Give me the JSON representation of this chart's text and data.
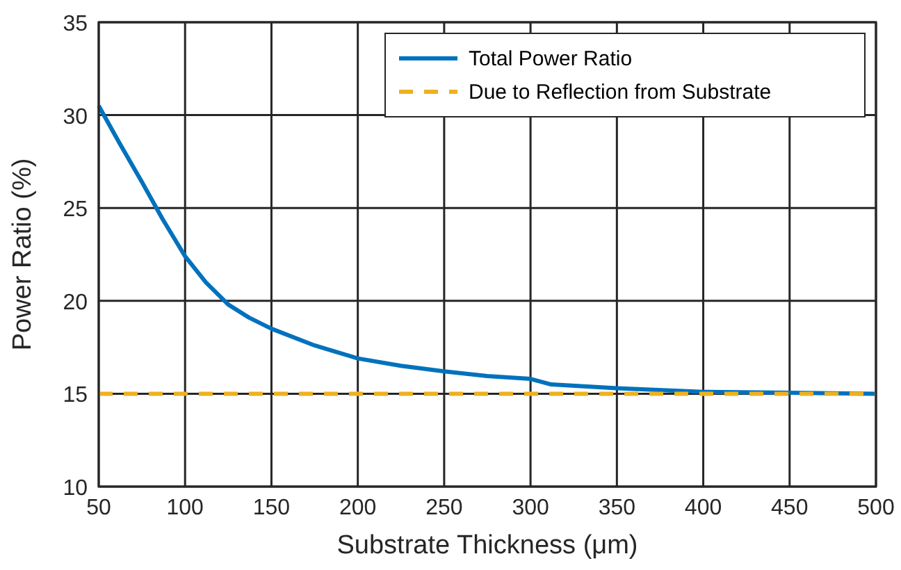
{
  "chart_data": {
    "type": "line",
    "xlabel": "Substrate Thickness (μm)",
    "ylabel": "Power Ratio (%)",
    "xlim": [
      50,
      500
    ],
    "xticks": [
      50,
      100,
      150,
      200,
      250,
      300,
      350,
      400,
      450,
      500
    ],
    "ylim": [
      10,
      35
    ],
    "yticks": [
      10,
      15,
      20,
      25,
      30,
      35
    ],
    "grid": true,
    "legend": "top right",
    "series": [
      {
        "name": "Total Power Ratio",
        "color": "#0072bd",
        "line_style": "solid",
        "x": [
          50,
          62,
          75,
          87,
          100,
          112,
          125,
          137,
          150,
          175,
          200,
          225,
          250,
          275,
          300,
          312,
          350,
          400,
          450,
          500
        ],
        "values": [
          30.5,
          28.5,
          26.4,
          24.4,
          22.4,
          21.0,
          19.8,
          19.1,
          18.5,
          17.6,
          16.9,
          16.5,
          16.2,
          15.95,
          15.8,
          15.5,
          15.3,
          15.1,
          15.05,
          15.0
        ]
      },
      {
        "name": "Due to Reflection from Substrate",
        "color": "#edb120",
        "line_style": "dashed",
        "x": [
          50,
          500
        ],
        "values": [
          15,
          15
        ]
      }
    ]
  }
}
